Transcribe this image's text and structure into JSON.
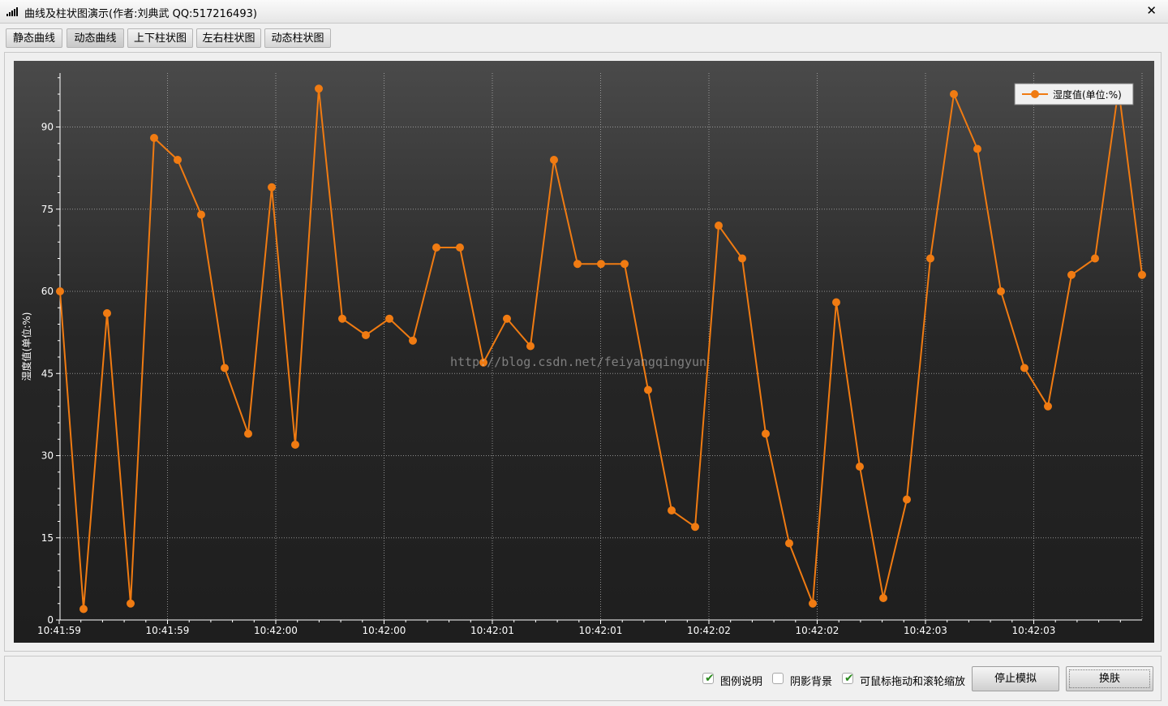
{
  "window": {
    "title": "曲线及柱状图演示(作者:刘典武 QQ:517216493)",
    "close_label": "✕"
  },
  "tabs": [
    {
      "label": "静态曲线",
      "active": false
    },
    {
      "label": "动态曲线",
      "active": true
    },
    {
      "label": "上下柱状图",
      "active": false
    },
    {
      "label": "左右柱状图",
      "active": false
    },
    {
      "label": "动态柱状图",
      "active": false
    }
  ],
  "watermark": "http://blog.csdn.net/feiyangqingyun",
  "chart_data": {
    "type": "line",
    "title": "",
    "xlabel": "",
    "ylabel": "湿度值(单位:%)",
    "ylim": [
      0,
      100
    ],
    "yticks": [
      0,
      15,
      30,
      45,
      60,
      75,
      90
    ],
    "xtick_labels": [
      "10:41:59",
      "10:41:59",
      "10:42:00",
      "10:42:00",
      "10:42:01",
      "10:42:01",
      "10:42:02",
      "10:42:02",
      "10:42:03",
      "10:42:03"
    ],
    "grid": true,
    "legend": {
      "position": "top-right"
    },
    "colors": {
      "line": "#f07b12",
      "grid": "#bdbdbd",
      "axis": "#ffffff"
    },
    "series": [
      {
        "name": "湿度值(单位:%)",
        "values": [
          60,
          2,
          56,
          3,
          88,
          84,
          74,
          46,
          34,
          79,
          32,
          97,
          55,
          52,
          55,
          51,
          68,
          68,
          47,
          55,
          50,
          84,
          65,
          65,
          65,
          42,
          20,
          17,
          72,
          66,
          34,
          14,
          3,
          58,
          28,
          4,
          22,
          66,
          96,
          86,
          60,
          46,
          39,
          63,
          66,
          97,
          63
        ]
      }
    ]
  },
  "controls": {
    "checkboxes": [
      {
        "label": "图例说明",
        "checked": true
      },
      {
        "label": "阴影背景",
        "checked": false
      },
      {
        "label": "可鼠标拖动和滚轮缩放",
        "checked": true
      }
    ],
    "stop_label": "停止模拟",
    "skin_label": "换肤"
  }
}
